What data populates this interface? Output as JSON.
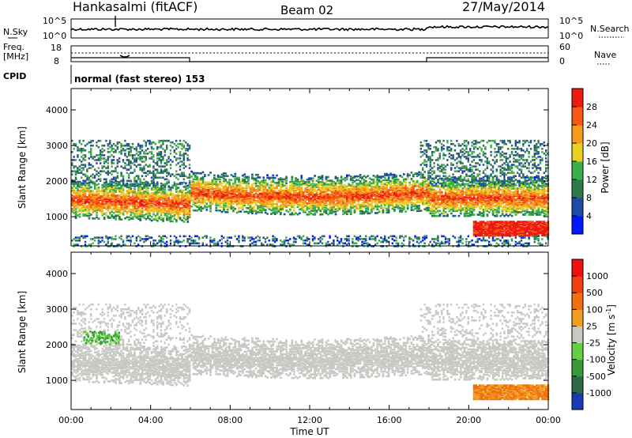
{
  "header": {
    "station": "Hankasalmi (fitACF)",
    "beam": "Beam 02",
    "date": "27/May/2014"
  },
  "noise_panel": {
    "left_label": "N.Sky",
    "right_label": "N.Search",
    "left_ticks": [
      "10^5",
      "10^0"
    ],
    "right_ticks": [
      "10^5",
      "10^0"
    ]
  },
  "freq_panel": {
    "left_label_1": "Freq.",
    "left_label_2": "[MHz]",
    "left_ticks": [
      "18",
      "8"
    ],
    "right_label": "Nave",
    "right_ticks": [
      "60",
      "0"
    ]
  },
  "cpid": {
    "label": "CPID",
    "mode_text": "normal (fast stereo) 153"
  },
  "x_axis": {
    "label": "Time UT",
    "ticks": [
      "00:00",
      "04:00",
      "08:00",
      "12:00",
      "16:00",
      "20:00",
      "00:00"
    ]
  },
  "chart_data": [
    {
      "type": "heatmap",
      "name": "power",
      "ylabel": "Slant Range [km]",
      "yticks": [
        1000,
        2000,
        3000,
        4000
      ],
      "ylim": [
        180,
        4600
      ],
      "xlim_hours": [
        0,
        24
      ],
      "colorbar": {
        "label": "Power [dB]",
        "ticks": [
          "28",
          "24",
          "20",
          "16",
          "12",
          "8",
          "4"
        ],
        "colors": [
          "#0018ff",
          "#1f4aa8",
          "#2c7a4a",
          "#3ab04a",
          "#e8d020",
          "#f59a1a",
          "#f45a15",
          "#ee1a10"
        ]
      },
      "features": [
        {
          "band": "main echo band",
          "t_start": 0,
          "t_end": 24,
          "range_center_start": 1400,
          "range_center_end": 1550,
          "power_db": 28
        }
      ]
    },
    {
      "type": "heatmap",
      "name": "velocity",
      "ylabel": "Slant Range [km]",
      "yticks": [
        1000,
        2000,
        3000,
        4000
      ],
      "ylim": [
        180,
        4600
      ],
      "xlim_hours": [
        0,
        24
      ],
      "colorbar": {
        "label": "Velocity [m s",
        "label_sup": "-1",
        "label_end": "]",
        "ticks": [
          "1000",
          "500",
          "100",
          "25",
          "-25",
          "-100",
          "-500",
          "-1000"
        ],
        "colors": [
          "#1a3ab8",
          "#2d6a44",
          "#3a9a3a",
          "#62d040",
          "#c8c8c4",
          "#f0a020",
          "#f07010",
          "#f04010",
          "#ee1010"
        ]
      }
    }
  ]
}
